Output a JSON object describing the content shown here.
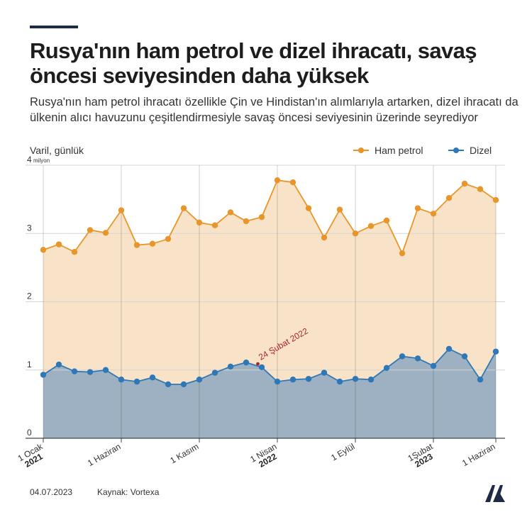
{
  "header": {
    "title": "Rusya'nın ham petrol ve dizel ihracatı, savaş öncesi seviyesinden daha yüksek",
    "subtitle": "Rusya'nın ham petrol ihracatı özellikle Çin ve Hindistan'ın alımlarıyla artarken, dizel ihracatı da ülkenin alıcı havuzunu çeşitlendirmesiyle savaş öncesi seviyesinin üzerinde seyrediyor"
  },
  "footer": {
    "date": "04.07.2023",
    "source": "Kaynak: Vortexa",
    "logo": "AA"
  },
  "colors": {
    "crude_line": "#e8962a",
    "crude_fill": "#f9e3c8",
    "diesel_line": "#2e78b8",
    "diesel_fill": "#9eb1c2",
    "annotation": "#a8252a",
    "gridline": "#d4d4d4"
  },
  "chart_data": {
    "type": "area",
    "ylabel": "Varil, günlük",
    "y_unit_label": "milyon",
    "ylim": [
      0,
      4
    ],
    "yticks": [
      0,
      1,
      2,
      3,
      4
    ],
    "legend_position": "top-right",
    "x_tick_labels": [
      {
        "index": 0,
        "label": "1 Ocak",
        "year": "2021"
      },
      {
        "index": 5,
        "label": "1 Haziran",
        "year": ""
      },
      {
        "index": 10,
        "label": "1 Kasım",
        "year": ""
      },
      {
        "index": 15,
        "label": "1 Nisan",
        "year": "2022"
      },
      {
        "index": 20,
        "label": "1 Eylül",
        "year": ""
      },
      {
        "index": 25,
        "label": "1Şubat",
        "year": "2023"
      },
      {
        "index": 29,
        "label": "1 Haziran",
        "year": ""
      }
    ],
    "x": [
      "2021-01",
      "2021-02",
      "2021-03",
      "2021-04",
      "2021-05",
      "2021-06",
      "2021-07",
      "2021-08",
      "2021-09",
      "2021-10",
      "2021-11",
      "2021-12",
      "2022-01",
      "2022-02",
      "2022-03",
      "2022-04",
      "2022-05",
      "2022-06",
      "2022-07",
      "2022-08",
      "2022-09",
      "2022-10",
      "2022-11",
      "2022-12",
      "2023-01",
      "2023-02",
      "2023-03",
      "2023-04",
      "2023-05",
      "2023-06"
    ],
    "series": [
      {
        "name": "Ham petrol",
        "values": [
          2.76,
          2.84,
          2.73,
          3.05,
          3.01,
          3.34,
          2.83,
          2.85,
          2.92,
          3.37,
          3.16,
          3.12,
          3.31,
          3.18,
          3.24,
          3.78,
          3.75,
          3.37,
          2.94,
          3.35,
          3.0,
          3.11,
          3.19,
          2.71,
          3.37,
          3.29,
          3.52,
          3.73,
          3.65,
          3.49
        ]
      },
      {
        "name": "Dizel",
        "values": [
          0.93,
          1.08,
          0.98,
          0.97,
          1.0,
          0.86,
          0.83,
          0.89,
          0.79,
          0.79,
          0.86,
          0.96,
          1.05,
          1.11,
          1.04,
          0.83,
          0.86,
          0.87,
          0.96,
          0.83,
          0.87,
          0.86,
          1.03,
          1.2,
          1.17,
          1.06,
          1.31,
          1.2,
          0.86,
          1.27
        ]
      }
    ],
    "annotation": {
      "text": "24 Şubat 2022",
      "x_index": 13.75,
      "y": 1.09
    }
  }
}
